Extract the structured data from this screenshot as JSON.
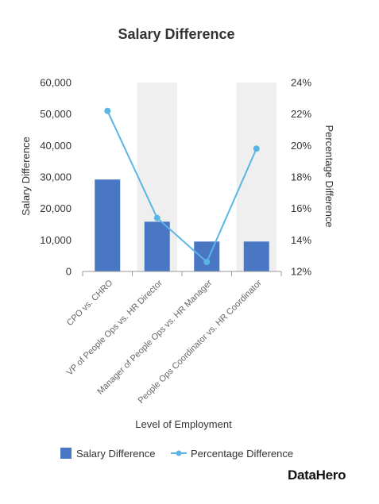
{
  "brand": "DataHero",
  "colors": {
    "bar": "#4a77c4",
    "line": "#5bb5e4",
    "band": "#efefef",
    "axis": "#999999"
  },
  "chart_data": {
    "type": "bar",
    "title": "Salary Difference",
    "xlabel": "Level of Employment",
    "ylabel": "Salary Difference",
    "y2label": "Percentage Difference",
    "categories": [
      "CPO vs. CHRO",
      "VP of People Ops vs. HR Director",
      "Manager of People Ops vs. HR Manager",
      "People Ops Coordinator vs. HR Coordinator"
    ],
    "ylim": [
      0,
      60000
    ],
    "yticks": [
      "0",
      "10,000",
      "20,000",
      "30,000",
      "40,000",
      "50,000",
      "60,000"
    ],
    "y2lim": [
      12,
      24
    ],
    "y2ticks": [
      "12%",
      "14%",
      "16%",
      "18%",
      "20%",
      "22%",
      "24%"
    ],
    "series": [
      {
        "name": "Salary Difference",
        "type": "bar",
        "axis": "left",
        "values": [
          29200,
          15800,
          9500,
          9500
        ]
      },
      {
        "name": "Percentage Difference",
        "type": "line",
        "axis": "right",
        "values": [
          22.2,
          15.4,
          12.6,
          19.8
        ]
      }
    ],
    "legend_position": "bottom",
    "grid": false
  }
}
